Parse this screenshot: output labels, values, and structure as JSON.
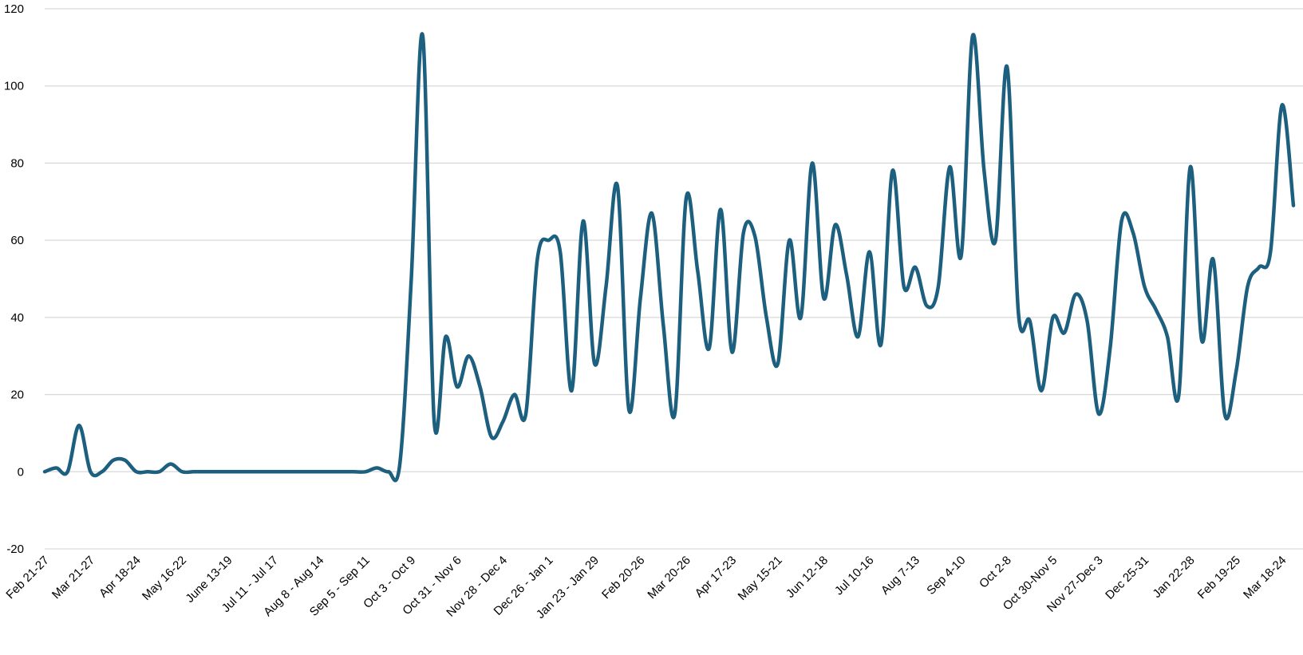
{
  "colors": {
    "line": "#1d5f7e",
    "grid": "#d9d9d9",
    "text": "#000000"
  },
  "chart_data": {
    "type": "line",
    "title": "",
    "xlabel": "",
    "ylabel": "",
    "ylim": [
      -20,
      120
    ],
    "yticks": [
      -20,
      0,
      20,
      40,
      60,
      80,
      100,
      120
    ],
    "grid": true,
    "smooth": true,
    "x_tick_labels": [
      {
        "index": 0,
        "label": "Feb 21-27"
      },
      {
        "index": 4,
        "label": "Mar 21-27"
      },
      {
        "index": 8,
        "label": "Apr 18-24"
      },
      {
        "index": 12,
        "label": "May 16-22"
      },
      {
        "index": 16,
        "label": "June 13-19"
      },
      {
        "index": 20,
        "label": "Jul 11 - Jul 17"
      },
      {
        "index": 24,
        "label": "Aug 8 - Aug 14"
      },
      {
        "index": 28,
        "label": "Sep 5 - Sep 11"
      },
      {
        "index": 32,
        "label": "Oct 3 - Oct 9"
      },
      {
        "index": 36,
        "label": "Oct 31 - Nov 6"
      },
      {
        "index": 40,
        "label": "Nov 28 - Dec 4"
      },
      {
        "index": 44,
        "label": "Dec 26 - Jan 1"
      },
      {
        "index": 48,
        "label": "Jan 23 - Jan 29"
      },
      {
        "index": 52,
        "label": "Feb 20-26"
      },
      {
        "index": 56,
        "label": "Mar 20-26"
      },
      {
        "index": 60,
        "label": "Apr 17-23"
      },
      {
        "index": 64,
        "label": "May 15-21"
      },
      {
        "index": 68,
        "label": "Jun 12-18"
      },
      {
        "index": 72,
        "label": "Jul 10-16"
      },
      {
        "index": 76,
        "label": "Aug 7-13"
      },
      {
        "index": 80,
        "label": "Sep 4-10"
      },
      {
        "index": 84,
        "label": "Oct 2-8"
      },
      {
        "index": 88,
        "label": "Oct 30-Nov 5"
      },
      {
        "index": 92,
        "label": "Nov 27-Dec 3"
      },
      {
        "index": 96,
        "label": "Dec 25-31"
      },
      {
        "index": 100,
        "label": "Jan 22-28"
      },
      {
        "index": 104,
        "label": "Feb 19-25"
      },
      {
        "index": 108,
        "label": "Mar 18-24"
      }
    ],
    "series": [
      {
        "values": [
          0,
          1,
          0,
          12,
          0,
          0,
          3,
          3,
          0,
          0,
          0,
          2,
          0,
          0,
          0,
          0,
          0,
          0,
          0,
          0,
          0,
          0,
          0,
          0,
          0,
          0,
          0,
          0,
          0,
          1,
          0,
          2,
          50,
          113,
          13,
          35,
          22,
          30,
          22,
          9,
          13,
          20,
          15,
          55,
          60,
          57,
          21,
          65,
          28,
          48,
          74,
          16,
          45,
          67,
          38,
          15,
          71,
          52,
          32,
          68,
          31,
          62,
          61,
          40,
          28,
          60,
          40,
          80,
          45,
          64,
          51,
          35,
          57,
          33,
          78,
          48,
          53,
          43,
          48,
          79,
          56,
          113,
          78,
          60,
          105,
          41,
          39,
          21,
          40,
          36,
          46,
          39,
          15,
          32,
          65,
          62,
          48,
          42,
          35,
          20,
          79,
          34,
          55,
          15,
          26,
          48,
          53,
          57,
          95,
          69
        ]
      }
    ]
  }
}
